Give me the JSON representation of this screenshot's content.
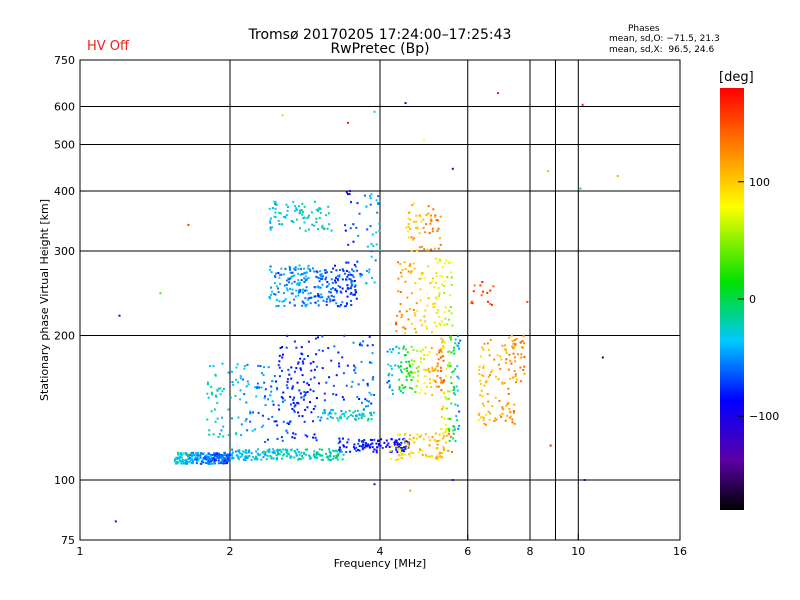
{
  "header": {
    "title_line1": "Tromsø 20170205 17:24:00–17:25:43",
    "title_line2": "RwPretec (Bp)",
    "status": "HV Off",
    "status_color": "#e8241a",
    "phase_stats_title": "Phases",
    "phase_stats_o": "mean, sd,O: −71.5, 21.3",
    "phase_stats_x": "mean, sd,X:  96.5, 24.6"
  },
  "chart_data": {
    "type": "scatter",
    "xlabel": "Frequency [MHz]",
    "ylabel": "Stationary phase Virtual Height [km]",
    "xscale": "log",
    "yscale": "log",
    "xlim": [
      1,
      16
    ],
    "ylim": [
      75,
      750
    ],
    "xticks": [
      {
        "v": 1,
        "label": "1"
      },
      {
        "v": 2,
        "label": "2"
      },
      {
        "v": 4,
        "label": "4"
      },
      {
        "v": 6,
        "label": "6"
      },
      {
        "v": 8,
        "label": "8"
      },
      {
        "v": 9,
        "label": ""
      },
      {
        "v": 10,
        "label": "10"
      },
      {
        "v": 16,
        "label": "16"
      }
    ],
    "yticks": [
      {
        "v": 75,
        "label": "75"
      },
      {
        "v": 100,
        "label": "100"
      },
      {
        "v": 200,
        "label": "200"
      },
      {
        "v": 300,
        "label": "300"
      },
      {
        "v": 400,
        "label": "400"
      },
      {
        "v": 500,
        "label": "500"
      },
      {
        "v": 600,
        "label": "600"
      },
      {
        "v": 750,
        "label": "750"
      }
    ],
    "grid_x": [
      2,
      4,
      6,
      8,
      9,
      10
    ],
    "grid_y": [
      100,
      200,
      300,
      400,
      500,
      600
    ],
    "grid": true,
    "colorbar": {
      "label": "[deg]",
      "min": -180,
      "max": 180,
      "ticks": [
        {
          "v": 100,
          "label": "100"
        },
        {
          "v": 0,
          "label": "0"
        },
        {
          "v": -100,
          "label": "−100"
        }
      ]
    },
    "clusters": [
      {
        "f": [
          1.55,
          2.0
        ],
        "h": [
          108,
          114
        ],
        "phase": [
          -30,
          -70
        ],
        "n": 220
      },
      {
        "f": [
          2.0,
          3.4
        ],
        "h": [
          110,
          116
        ],
        "phase": [
          -35,
          -20
        ],
        "n": 200
      },
      {
        "f": [
          3.3,
          4.6
        ],
        "h": [
          114,
          122
        ],
        "phase": [
          -75,
          -95
        ],
        "n": 120
      },
      {
        "f": [
          3.0,
          3.9
        ],
        "h": [
          133,
          140
        ],
        "phase": [
          -45,
          -20
        ],
        "n": 60
      },
      {
        "f": [
          1.8,
          3.0
        ],
        "h": [
          120,
          175
        ],
        "phase": [
          -20,
          -90
        ],
        "n": 180
      },
      {
        "f": [
          2.5,
          3.9
        ],
        "h": [
          140,
          200
        ],
        "phase": [
          -85,
          -60
        ],
        "n": 120
      },
      {
        "f": [
          2.4,
          3.6
        ],
        "h": [
          230,
          280
        ],
        "phase": [
          -40,
          -70
        ],
        "n": 260
      },
      {
        "f": [
          2.4,
          3.2
        ],
        "h": [
          330,
          380
        ],
        "phase": [
          -40,
          -20
        ],
        "n": 80
      },
      {
        "f": [
          3.4,
          4.0
        ],
        "h": [
          250,
          400
        ],
        "phase": [
          -80,
          -35
        ],
        "n": 60
      },
      {
        "f": [
          4.2,
          5.6
        ],
        "h": [
          110,
          125
        ],
        "phase": [
          80,
          120
        ],
        "n": 90
      },
      {
        "f": [
          4.1,
          5.4
        ],
        "h": [
          150,
          190
        ],
        "phase": [
          -60,
          150
        ],
        "n": 140
      },
      {
        "f": [
          4.3,
          5.6
        ],
        "h": [
          200,
          290
        ],
        "phase": [
          130,
          60
        ],
        "n": 120
      },
      {
        "f": [
          4.5,
          5.3
        ],
        "h": [
          300,
          380
        ],
        "phase": [
          100,
          130
        ],
        "n": 60
      },
      {
        "f": [
          5.3,
          5.8
        ],
        "h": [
          120,
          200
        ],
        "phase": [
          110,
          -60
        ],
        "n": 90
      },
      {
        "f": [
          6.3,
          7.5
        ],
        "h": [
          130,
          200
        ],
        "phase": [
          100,
          130
        ],
        "n": 110
      },
      {
        "f": [
          6.0,
          6.8
        ],
        "h": [
          230,
          260
        ],
        "phase": [
          140,
          160
        ],
        "n": 15
      },
      {
        "f": [
          7.4,
          7.8
        ],
        "h": [
          160,
          200
        ],
        "phase": [
          110,
          130
        ],
        "n": 25
      }
    ],
    "isolated_points": [
      {
        "f": 1.18,
        "h": 82,
        "phase": -100
      },
      {
        "f": 1.2,
        "h": 220,
        "phase": -90
      },
      {
        "f": 1.45,
        "h": 245,
        "phase": 30
      },
      {
        "f": 1.65,
        "h": 340,
        "phase": 160
      },
      {
        "f": 2.55,
        "h": 575,
        "phase": 60
      },
      {
        "f": 3.45,
        "h": 555,
        "phase": 170
      },
      {
        "f": 3.9,
        "h": 585,
        "phase": -30
      },
      {
        "f": 4.5,
        "h": 610,
        "phase": -100
      },
      {
        "f": 4.9,
        "h": 510,
        "phase": 80
      },
      {
        "f": 5.6,
        "h": 445,
        "phase": -110
      },
      {
        "f": 6.9,
        "h": 640,
        "phase": 175
      },
      {
        "f": 10.2,
        "h": 605,
        "phase": 170
      },
      {
        "f": 10.1,
        "h": 405,
        "phase": -10
      },
      {
        "f": 8.7,
        "h": 440,
        "phase": 110
      },
      {
        "f": 12.0,
        "h": 430,
        "phase": 110
      },
      {
        "f": 11.2,
        "h": 180,
        "phase": -160
      },
      {
        "f": 10.3,
        "h": 100,
        "phase": -110
      },
      {
        "f": 8.8,
        "h": 118,
        "phase": 170
      },
      {
        "f": 5.6,
        "h": 100,
        "phase": -80
      },
      {
        "f": 4.6,
        "h": 95,
        "phase": 120
      },
      {
        "f": 3.9,
        "h": 98,
        "phase": -120
      },
      {
        "f": 7.9,
        "h": 235,
        "phase": 150
      },
      {
        "f": 2.5,
        "h": 270,
        "phase": -100
      },
      {
        "f": 1.65,
        "h": 113,
        "phase": 30
      }
    ]
  }
}
